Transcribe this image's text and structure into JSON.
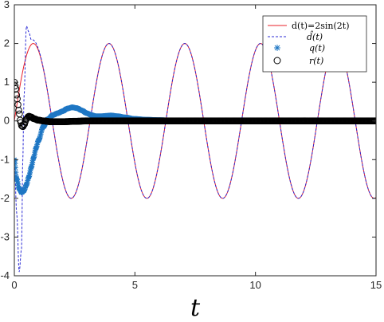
{
  "chart_data": {
    "type": "line",
    "xlabel": "t",
    "ylabel": "",
    "title": "",
    "xlim": [
      0,
      15
    ],
    "ylim": [
      -4,
      3
    ],
    "xticks": [
      0,
      5,
      10,
      15
    ],
    "yticks": [
      -4,
      -3,
      -2,
      -1,
      0,
      1,
      2,
      3
    ],
    "grid": false,
    "legend_position": "top-right",
    "series": [
      {
        "name": "d(t)=2sin(2t)",
        "style": "solid-line",
        "color": "#e8202a",
        "x": [
          0,
          0.5,
          1,
          1.5,
          2,
          2.5,
          3,
          3.5,
          4,
          4.5,
          5,
          5.5,
          6,
          6.5,
          7,
          7.5,
          8,
          8.5,
          9,
          9.5,
          10,
          10.5,
          11,
          11.5,
          12,
          12.5,
          13,
          13.5,
          14,
          14.5,
          15
        ],
        "y": [
          0,
          1.68,
          1.82,
          0.28,
          -1.51,
          -1.92,
          -0.56,
          1.31,
          1.98,
          0.82,
          -1.09,
          -2.0,
          -1.07,
          0.84,
          1.98,
          1.3,
          -0.58,
          -1.92,
          -1.5,
          0.3,
          1.83,
          1.67,
          -0.02,
          -1.7,
          -1.81,
          -0.27,
          1.52,
          1.92,
          0.54,
          -1.33,
          -1.98
        ]
      },
      {
        "name": "d̂(t)",
        "display_label": "\\hat{d}(t)",
        "style": "dashed-line",
        "color": "#2b2bd6",
        "x": [
          0,
          0.1,
          0.2,
          0.3,
          0.35,
          0.4,
          0.5,
          0.6,
          0.7,
          0.8,
          1,
          1.5,
          2,
          2.5,
          3,
          3.5,
          4,
          4.5,
          5,
          5.5,
          6,
          6.5,
          7,
          7.5,
          8,
          8.5,
          9,
          9.5,
          10,
          10.5,
          11,
          11.5,
          12,
          12.5,
          13,
          13.5,
          14,
          14.5,
          15
        ],
        "y": [
          -1,
          -2.4,
          -3.9,
          -3.3,
          -1.0,
          0.6,
          2.45,
          2.3,
          2.1,
          1.95,
          1.82,
          0.28,
          -1.51,
          -1.92,
          -0.56,
          1.31,
          1.98,
          0.82,
          -1.09,
          -2.0,
          -1.07,
          0.84,
          1.98,
          1.3,
          -0.58,
          -1.92,
          -1.5,
          0.3,
          1.83,
          1.67,
          -0.02,
          -1.7,
          -1.81,
          -0.27,
          1.52,
          1.92,
          0.54,
          -1.33,
          -1.98
        ]
      },
      {
        "name": "q(t)",
        "style": "asterisk-markers",
        "color": "#1f77c4",
        "x": [
          0,
          0.1,
          0.2,
          0.3,
          0.4,
          0.5,
          0.6,
          0.7,
          0.8,
          0.9,
          1.0,
          1.2,
          1.4,
          1.6,
          1.8,
          2.0,
          2.2,
          2.4,
          2.6,
          2.8,
          3.0,
          3.2,
          3.4,
          3.6,
          3.8,
          4.0,
          4.3,
          4.6,
          5.0,
          5.5,
          6.0,
          6.5,
          7.0
        ],
        "y": [
          -1.0,
          -1.5,
          -1.75,
          -1.85,
          -1.8,
          -1.65,
          -1.45,
          -1.2,
          -0.95,
          -0.7,
          -0.5,
          -0.15,
          0.05,
          0.15,
          0.2,
          0.25,
          0.32,
          0.35,
          0.33,
          0.27,
          0.2,
          0.15,
          0.12,
          0.12,
          0.13,
          0.14,
          0.12,
          0.09,
          0.05,
          0.03,
          0.02,
          0.01,
          0.0
        ]
      },
      {
        "name": "r(t)",
        "style": "circle-markers",
        "color": "#000000",
        "x": [
          0,
          0.05,
          0.1,
          0.15,
          0.2,
          0.25,
          0.3,
          0.35,
          0.4,
          0.5,
          0.6,
          0.7,
          0.8,
          1.0,
          1.2,
          1.5,
          2.0,
          2.5,
          3.0,
          3.5,
          4.0,
          5.0,
          6.0,
          7.0,
          8.0,
          9.0,
          10.0,
          11.0,
          12.0,
          13.0,
          14.0,
          15.0
        ],
        "y": [
          1.0,
          0.85,
          0.65,
          0.42,
          0.2,
          0.0,
          -0.12,
          -0.15,
          -0.1,
          0.05,
          0.12,
          0.1,
          0.06,
          0.02,
          0.0,
          -0.02,
          -0.02,
          -0.01,
          0.0,
          0.0,
          0.0,
          0.0,
          0.0,
          0.0,
          0.0,
          0.0,
          0.0,
          0.0,
          0.0,
          0.0,
          0.0,
          0.0
        ]
      }
    ]
  }
}
